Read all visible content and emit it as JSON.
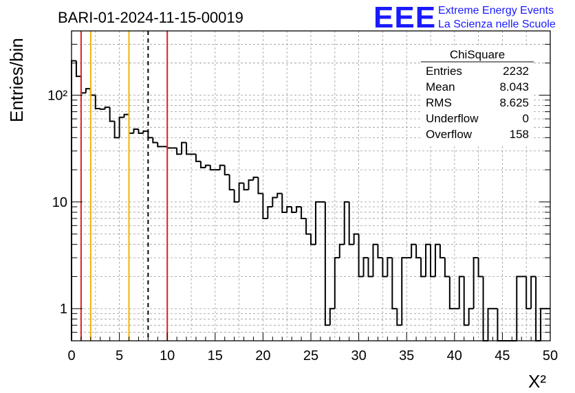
{
  "title": "BARI-01-2024-11-15-00019",
  "logo": {
    "mark": "EEE",
    "line1": "Extreme Energy Events",
    "line2": "La Scienza nelle Scuole",
    "color": "#1a1aff"
  },
  "stats": {
    "name": "ChiSquare",
    "rows": [
      {
        "label": "Entries",
        "value": "2232"
      },
      {
        "label": "Mean",
        "value": "8.043"
      },
      {
        "label": "RMS",
        "value": "8.625"
      },
      {
        "label": "Underflow",
        "value": "0"
      },
      {
        "label": "Overflow",
        "value": "158"
      }
    ]
  },
  "chart_data": {
    "type": "histogram",
    "xlabel": "X²",
    "ylabel": "Entries/bin",
    "xlim": [
      0,
      50
    ],
    "ylim": [
      0.5,
      400
    ],
    "yscale": "log",
    "grid": true,
    "bin_width": 0.5,
    "x_ticks": [
      0,
      5,
      10,
      15,
      20,
      25,
      30,
      35,
      40,
      45,
      50
    ],
    "x_tick_labels": [
      "0",
      "5",
      "10",
      "15",
      "20",
      "25",
      "30",
      "35",
      "40",
      "45",
      "50"
    ],
    "y_ticks": [
      1,
      10,
      100
    ],
    "y_tick_labels": [
      "1",
      "10",
      "10²"
    ],
    "values": [
      210,
      150,
      105,
      115,
      100,
      75,
      74,
      77,
      57,
      40,
      62,
      66,
      44,
      48,
      44,
      46,
      40,
      36,
      33,
      33,
      32,
      32,
      28,
      36,
      28,
      28,
      24,
      21,
      22,
      20,
      20,
      22,
      18,
      13,
      10,
      15,
      13,
      16,
      17,
      12,
      7,
      9,
      11,
      12,
      8,
      9,
      8,
      9,
      7,
      5,
      4,
      10,
      10,
      0.7,
      1,
      3,
      4,
      10,
      4,
      5,
      2,
      3,
      2,
      4,
      3,
      2,
      3,
      1,
      0.7,
      3,
      3,
      4,
      3,
      2,
      4,
      2,
      4,
      3,
      2,
      1,
      1,
      2,
      0.7,
      1,
      3,
      2,
      0.5,
      1,
      1,
      0.5,
      0.5,
      0.5,
      0.5,
      2,
      2,
      1,
      2,
      0.5,
      1,
      1
    ],
    "vertical_lines": [
      {
        "x": 1,
        "color": "#dd2222",
        "style": "solid"
      },
      {
        "x": 2,
        "color": "#f0b400",
        "style": "solid"
      },
      {
        "x": 6,
        "color": "#f0b400",
        "style": "solid"
      },
      {
        "x": 8,
        "color": "#000000",
        "style": "dashed"
      },
      {
        "x": 10,
        "color": "#dd2222",
        "style": "solid"
      }
    ]
  }
}
